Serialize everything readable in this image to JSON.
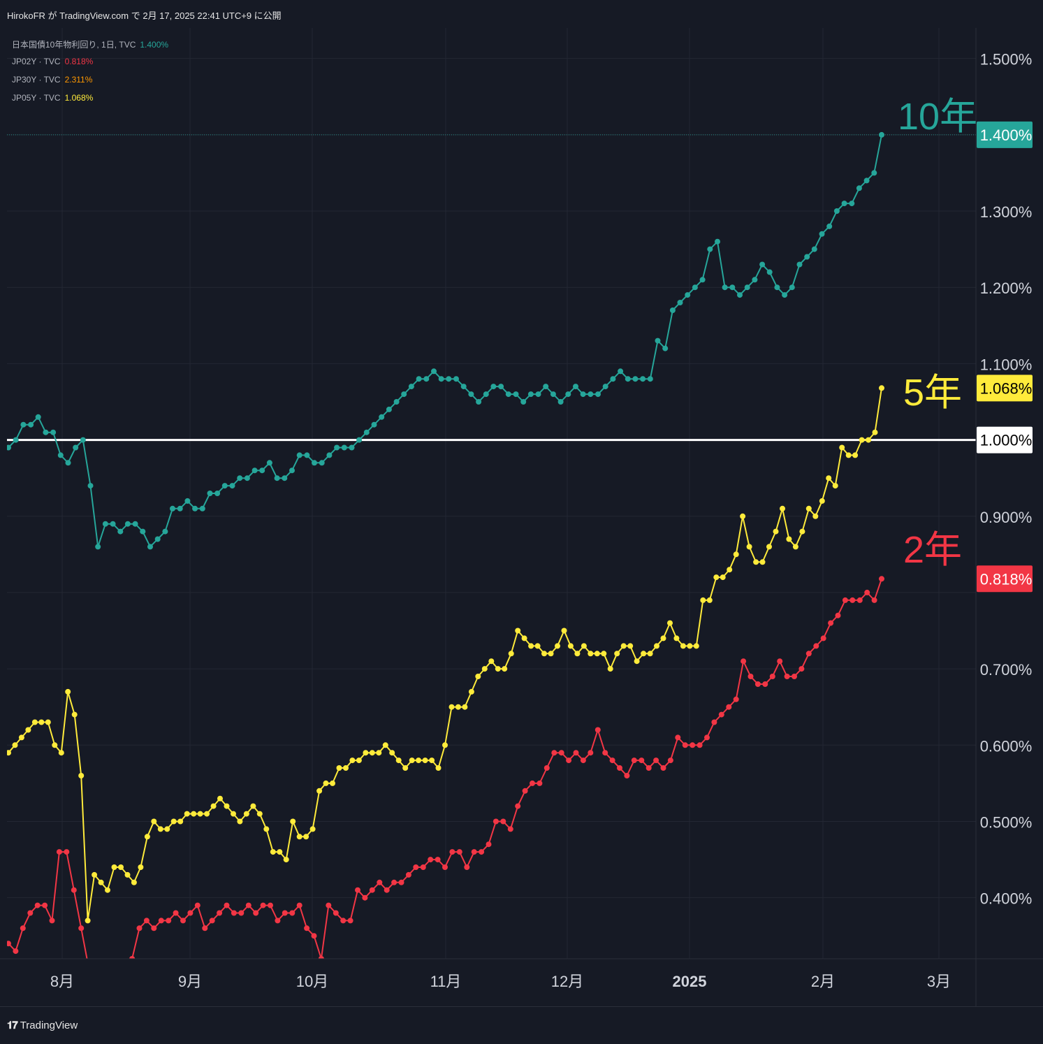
{
  "header": {
    "publisher_line": "HirokoFR が TradingView.com で 2月 17, 2025 22:41 UTC+9 に公開"
  },
  "footer": {
    "brand": "TradingView",
    "brand_icon": "tradingview-logo-icon"
  },
  "legend": [
    {
      "name": "日本国債10年物利回り, 1日, TVC",
      "value": "1.400%",
      "color": "#26a69a"
    },
    {
      "name": "JP02Y · TVC",
      "value": "0.818%",
      "color": "#f23645"
    },
    {
      "name": "JP30Y · TVC",
      "value": "2.311%",
      "color": "#ff9800"
    },
    {
      "name": "JP05Y · TVC",
      "value": "1.068%",
      "color": "#ffeb3b"
    }
  ],
  "chart_data": {
    "type": "line",
    "ylim": [
      0.32,
      1.54
    ],
    "y_ticks": [
      "1.500%",
      "1.300%",
      "1.200%",
      "1.100%",
      "0.900%",
      "0.700%",
      "0.600%",
      "0.500%",
      "0.400%"
    ],
    "x_ticks": [
      "8月",
      "9月",
      "10月",
      "11月",
      "12月",
      "2025",
      "2月",
      "3月"
    ],
    "reference_line": {
      "value": 1.0,
      "label": "1.000%",
      "color": "#ffffff"
    },
    "price_labels": [
      {
        "label": "1.400%",
        "value": 1.4,
        "color": "#26a69a",
        "text_color": "#ffffff"
      },
      {
        "label": "1.068%",
        "value": 1.068,
        "color": "#ffeb3b",
        "text_color": "#000000"
      },
      {
        "label": "0.818%",
        "value": 0.818,
        "color": "#f23645",
        "text_color": "#ffffff"
      }
    ],
    "annotations": [
      {
        "text": "10年",
        "series": "10年",
        "color": "#26a69a"
      },
      {
        "text": "5年",
        "series": "5年",
        "color": "#ffeb3b"
      },
      {
        "text": "2年",
        "series": "2年",
        "color": "#f23645"
      }
    ],
    "grid": true,
    "series": [
      {
        "name": "10年",
        "color": "#26a69a",
        "values": [
          0.99,
          1.0,
          1.02,
          1.02,
          1.03,
          1.01,
          1.01,
          0.98,
          0.97,
          0.99,
          1.0,
          0.94,
          0.86,
          0.89,
          0.89,
          0.88,
          0.89,
          0.89,
          0.88,
          0.86,
          0.87,
          0.88,
          0.91,
          0.91,
          0.92,
          0.91,
          0.91,
          0.93,
          0.93,
          0.94,
          0.94,
          0.95,
          0.95,
          0.96,
          0.96,
          0.97,
          0.95,
          0.95,
          0.96,
          0.98,
          0.98,
          0.97,
          0.97,
          0.98,
          0.99,
          0.99,
          0.99,
          1.0,
          1.01,
          1.02,
          1.03,
          1.04,
          1.05,
          1.06,
          1.07,
          1.08,
          1.08,
          1.09,
          1.08,
          1.08,
          1.08,
          1.07,
          1.06,
          1.05,
          1.06,
          1.07,
          1.07,
          1.06,
          1.06,
          1.05,
          1.06,
          1.06,
          1.07,
          1.06,
          1.05,
          1.06,
          1.07,
          1.06,
          1.06,
          1.06,
          1.07,
          1.08,
          1.09,
          1.08,
          1.08,
          1.08,
          1.08,
          1.13,
          1.12,
          1.17,
          1.18,
          1.19,
          1.2,
          1.21,
          1.25,
          1.26,
          1.2,
          1.2,
          1.19,
          1.2,
          1.21,
          1.23,
          1.22,
          1.2,
          1.19,
          1.2,
          1.23,
          1.24,
          1.25,
          1.27,
          1.28,
          1.3,
          1.31,
          1.31,
          1.33,
          1.34,
          1.35,
          1.4
        ]
      },
      {
        "name": "5年",
        "color": "#ffeb3b",
        "values": [
          0.59,
          0.6,
          0.61,
          0.62,
          0.63,
          0.63,
          0.63,
          0.6,
          0.59,
          0.67,
          0.64,
          0.56,
          0.37,
          0.43,
          0.42,
          0.41,
          0.44,
          0.44,
          0.43,
          0.42,
          0.44,
          0.48,
          0.5,
          0.49,
          0.49,
          0.5,
          0.5,
          0.51,
          0.51,
          0.51,
          0.51,
          0.52,
          0.53,
          0.52,
          0.51,
          0.5,
          0.51,
          0.52,
          0.51,
          0.49,
          0.46,
          0.46,
          0.45,
          0.5,
          0.48,
          0.48,
          0.49,
          0.54,
          0.55,
          0.55,
          0.57,
          0.57,
          0.58,
          0.58,
          0.59,
          0.59,
          0.59,
          0.6,
          0.59,
          0.58,
          0.57,
          0.58,
          0.58,
          0.58,
          0.58,
          0.57,
          0.6,
          0.65,
          0.65,
          0.65,
          0.67,
          0.69,
          0.7,
          0.71,
          0.7,
          0.7,
          0.72,
          0.75,
          0.74,
          0.73,
          0.73,
          0.72,
          0.72,
          0.73,
          0.75,
          0.73,
          0.72,
          0.73,
          0.72,
          0.72,
          0.72,
          0.7,
          0.72,
          0.73,
          0.73,
          0.71,
          0.72,
          0.72,
          0.73,
          0.74,
          0.76,
          0.74,
          0.73,
          0.73,
          0.73,
          0.79,
          0.79,
          0.82,
          0.82,
          0.83,
          0.85,
          0.9,
          0.86,
          0.84,
          0.84,
          0.86,
          0.88,
          0.91,
          0.87,
          0.86,
          0.88,
          0.91,
          0.9,
          0.92,
          0.95,
          0.94,
          0.99,
          0.98,
          0.98,
          1.0,
          1.0,
          1.01,
          1.068
        ]
      },
      {
        "name": "2年",
        "color": "#f23645",
        "values": [
          0.34,
          0.33,
          0.36,
          0.38,
          0.39,
          0.39,
          0.37,
          0.46,
          0.46,
          0.41,
          0.36,
          0.31,
          0.28,
          0.29,
          0.3,
          0.3,
          0.31,
          0.32,
          0.36,
          0.37,
          0.36,
          0.37,
          0.37,
          0.38,
          0.37,
          0.38,
          0.39,
          0.36,
          0.37,
          0.38,
          0.39,
          0.38,
          0.38,
          0.39,
          0.38,
          0.39,
          0.39,
          0.37,
          0.38,
          0.38,
          0.39,
          0.36,
          0.35,
          0.32,
          0.39,
          0.38,
          0.37,
          0.37,
          0.41,
          0.4,
          0.41,
          0.42,
          0.41,
          0.42,
          0.42,
          0.43,
          0.44,
          0.44,
          0.45,
          0.45,
          0.44,
          0.46,
          0.46,
          0.44,
          0.46,
          0.46,
          0.47,
          0.5,
          0.5,
          0.49,
          0.52,
          0.54,
          0.55,
          0.55,
          0.57,
          0.59,
          0.59,
          0.58,
          0.59,
          0.58,
          0.59,
          0.62,
          0.59,
          0.58,
          0.57,
          0.56,
          0.58,
          0.58,
          0.57,
          0.58,
          0.57,
          0.58,
          0.61,
          0.6,
          0.6,
          0.6,
          0.61,
          0.63,
          0.64,
          0.65,
          0.66,
          0.71,
          0.69,
          0.68,
          0.68,
          0.69,
          0.71,
          0.69,
          0.69,
          0.7,
          0.72,
          0.73,
          0.74,
          0.76,
          0.77,
          0.79,
          0.79,
          0.79,
          0.8,
          0.79,
          0.818
        ]
      }
    ]
  }
}
